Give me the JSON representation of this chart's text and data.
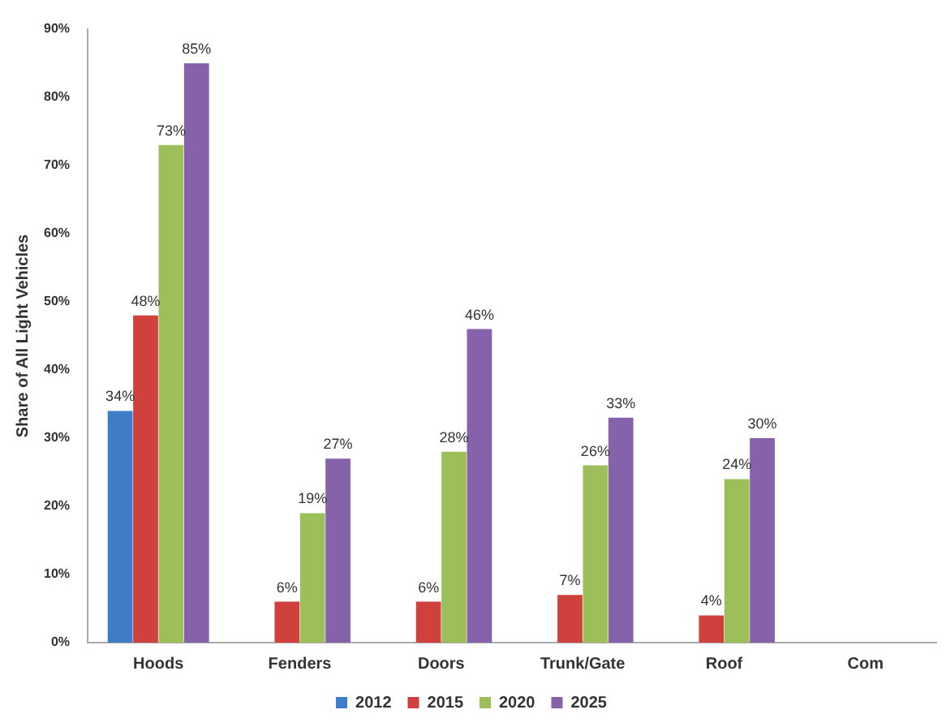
{
  "chart_data": {
    "type": "bar",
    "ylabel": "Share of All Light Vehicles",
    "categories": [
      "Hoods",
      "Fenders",
      "Doors",
      "Trunk/Gate",
      "Roof",
      "Com"
    ],
    "series": [
      {
        "name": "2012",
        "color": "#3f7dc8",
        "values": [
          34,
          null,
          null,
          null,
          null,
          null
        ],
        "value_labels": [
          "34%",
          null,
          null,
          null,
          null,
          null
        ]
      },
      {
        "name": "2015",
        "color": "#d0403c",
        "values": [
          48,
          6,
          6,
          7,
          4,
          null
        ],
        "value_labels": [
          "48%",
          "6%",
          "6%",
          "7%",
          "4%",
          null
        ]
      },
      {
        "name": "2020",
        "color": "#9cbf5a",
        "values": [
          73,
          19,
          28,
          26,
          24,
          null
        ],
        "value_labels": [
          "73%",
          "19%",
          "28%",
          "26%",
          "24%",
          null
        ]
      },
      {
        "name": "2025",
        "color": "#8562aa",
        "values": [
          85,
          27,
          46,
          33,
          30,
          null
        ],
        "value_labels": [
          "85%",
          "27%",
          "46%",
          "33%",
          "30%",
          null
        ]
      }
    ],
    "ylim": [
      0,
      90
    ],
    "yticks": [
      {
        "value": 0,
        "label": "0%"
      },
      {
        "value": 10,
        "label": "10%"
      },
      {
        "value": 20,
        "label": "20%"
      },
      {
        "value": 30,
        "label": "30%"
      },
      {
        "value": 40,
        "label": "40%"
      },
      {
        "value": 50,
        "label": "50%"
      },
      {
        "value": 60,
        "label": "60%"
      },
      {
        "value": 70,
        "label": "70%"
      },
      {
        "value": 80,
        "label": "80%"
      },
      {
        "value": 90,
        "label": "90%"
      }
    ],
    "grid": false,
    "legend": "bottom"
  }
}
